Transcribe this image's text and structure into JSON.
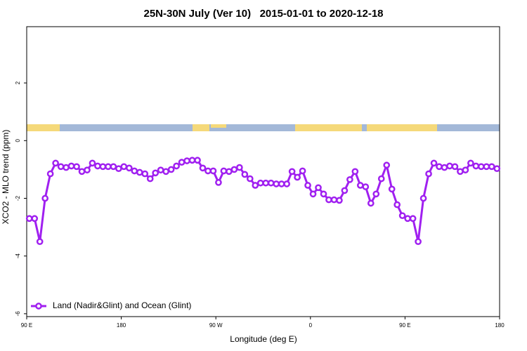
{
  "chart_data": {
    "type": "line",
    "title": "25N-30N July (Ver 10)   2015-01-01 to 2020-12-18",
    "x_label": "Longitude (deg E)",
    "y_label": "XCO2 - MLO trend (ppm)",
    "x": [
      92.5,
      97.5,
      102.5,
      107.5,
      112.5,
      117.5,
      122.5,
      127.5,
      132.5,
      137.5,
      142.5,
      147.5,
      152.5,
      157.5,
      162.5,
      167.5,
      172.5,
      177.5,
      182.5,
      187.5,
      192.5,
      197.5,
      202.5,
      207.5,
      212.5,
      217.5,
      222.5,
      227.5,
      232.5,
      237.5,
      242.5,
      247.5,
      252.5,
      257.5,
      262.5,
      267.5,
      272.5,
      277.5,
      282.5,
      287.5,
      292.5,
      297.5,
      302.5,
      307.5,
      312.5,
      317.5,
      322.5,
      327.5,
      332.5,
      337.5,
      342.5,
      347.5,
      352.5,
      357.5,
      362.5,
      367.5,
      372.5,
      377.5,
      382.5,
      387.5,
      392.5,
      397.5,
      402.5,
      407.5,
      412.5,
      417.5,
      422.5,
      427.5,
      432.5,
      437.5,
      442.5,
      447.5,
      452.5,
      457.5,
      462.5,
      467.5,
      472.5,
      477.5,
      482.5,
      487.5,
      492.5,
      497.5,
      502.5,
      507.5,
      512.5,
      517.5,
      522.5,
      527.5,
      532.5,
      537.5
    ],
    "series": [
      {
        "name": "Land (Nadir&Glint) and Ocean (Glint)",
        "color": "#a020f0",
        "values": [
          -2.7,
          -2.7,
          -3.5,
          -2.0,
          -1.15,
          -0.78,
          -0.9,
          -0.93,
          -0.88,
          -0.9,
          -1.07,
          -1.02,
          -0.78,
          -0.88,
          -0.9,
          -0.9,
          -0.9,
          -0.97,
          -0.9,
          -0.95,
          -1.05,
          -1.1,
          -1.15,
          -1.32,
          -1.12,
          -1.02,
          -1.07,
          -1.0,
          -0.88,
          -0.75,
          -0.7,
          -0.68,
          -0.68,
          -0.95,
          -1.05,
          -1.05,
          -1.45,
          -1.05,
          -1.07,
          -1.0,
          -0.93,
          -1.17,
          -1.32,
          -1.55,
          -1.47,
          -1.47,
          -1.47,
          -1.5,
          -1.5,
          -1.5,
          -1.07,
          -1.27,
          -1.05,
          -1.55,
          -1.85,
          -1.63,
          -1.85,
          -2.05,
          -2.05,
          -2.07,
          -1.73,
          -1.35,
          -1.07,
          -1.55,
          -1.6,
          -2.17,
          -1.85,
          -1.32,
          -0.85,
          -1.68,
          -2.22,
          -2.6,
          -2.7,
          -2.7,
          -3.5,
          -2.0,
          -1.15,
          -0.78,
          -0.9,
          -0.93,
          -0.88,
          -0.9,
          -1.07,
          -1.02,
          -0.78,
          -0.88,
          -0.9,
          -0.9,
          -0.9,
          -0.97
        ]
      }
    ],
    "xlim": [
      90,
      540
    ],
    "xticks": [
      {
        "value": 90,
        "label": "90 E"
      },
      180,
      {
        "value": 270,
        "label": "90 W"
      },
      {
        "value": 360,
        "label": "0"
      },
      {
        "value": 450,
        "label": "90 E"
      },
      {
        "value": 540,
        "label": "180"
      }
    ],
    "ylim": [
      -6.1,
      3.95
    ],
    "yticks": [
      2,
      0,
      -2,
      -4,
      -6
    ],
    "legend": "bottom-left"
  }
}
